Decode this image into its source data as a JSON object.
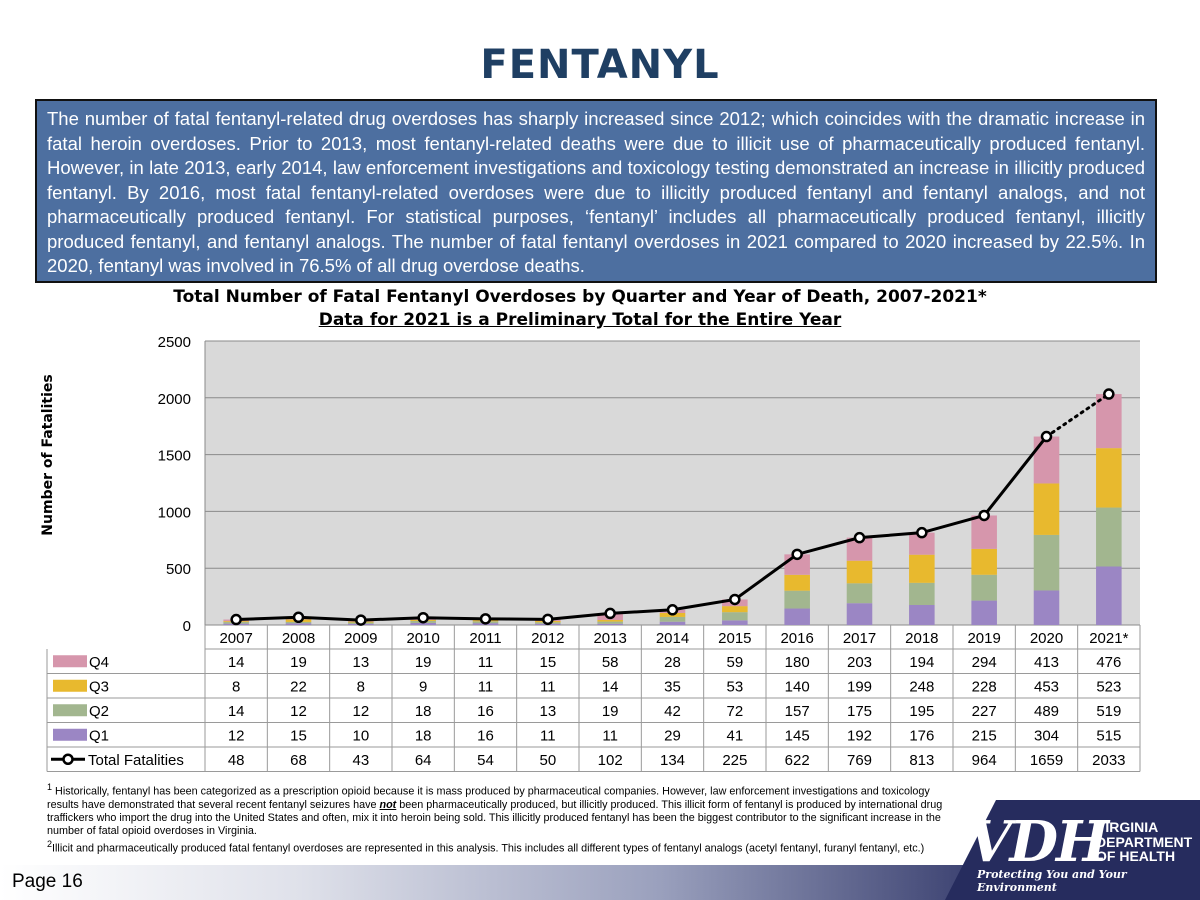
{
  "page": {
    "title": "FENTANYL",
    "intro": "The number of fatal fentanyl-related drug overdoses has sharply increased since 2012; which coincides with the dramatic increase in fatal heroin overdoses. Prior to 2013, most fentanyl-related deaths were due to illicit use of pharmaceutically produced fentanyl. However, in late 2013, early 2014, law enforcement investigations and toxicology testing demonstrated an increase in illicitly produced fentanyl. By 2016, most fatal fentanyl-related overdoses were due to illicitly produced fentanyl and fentanyl analogs, and not pharmaceutically produced fentanyl. For statistical purposes, ‘fentanyl’ includes all pharmaceutically produced fentanyl, illicitly produced fentanyl, and fentanyl analogs. The number of fatal fentanyl overdoses in 2021 compared to 2020 increased by 22.5%. In 2020, fentanyl was involved in 76.5% of all drug overdose deaths.",
    "footnote1_a": "Historically, fentanyl has been categorized as a prescription opioid because it is mass produced by pharmaceutical companies. However, law enforcement investigations and toxicology results have demonstrated that several recent fentanyl seizures have ",
    "footnote1_emph": "not",
    "footnote1_b": " been pharmaceutically produced, but illicitly produced. This illicit form of fentanyl is produced by international drug traffickers who import the drug into the United States and often, mix it into heroin being sold. This illicitly produced fentanyl has been the biggest contributor to the significant increase in the number of fatal opioid overdoses in Virginia.",
    "footnote2": "Illicit and pharmaceutically produced fatal fentanyl overdoses are represented in this analysis. This includes all different types of fentanyl analogs  (acetyl fentanyl, furanyl fentanyl, etc.)",
    "footnote1_mark": "1",
    "footnote2_mark": "2",
    "page_number": "Page 16",
    "logo": {
      "letters": "VDH",
      "line1": "VIRGINIA",
      "line2": "DEPARTMENT",
      "line3": "OF HEALTH",
      "tagline": "Protecting You and Your Environment"
    }
  },
  "chart_data": {
    "type": "bar",
    "stacked": true,
    "title": "Total Number of Fatal Fentanyl Overdoses by Quarter and Year of Death, 2007-2021*",
    "subtitle": "Data for 2021 is a Preliminary Total for the Entire Year",
    "ylabel": "Number of Fatalities",
    "xlabel": "",
    "ylim": [
      0,
      2500
    ],
    "yticks": [
      0,
      500,
      1000,
      1500,
      2000,
      2500
    ],
    "grid": true,
    "legend": "data-table-left",
    "categories": [
      "2007",
      "2008",
      "2009",
      "2010",
      "2011",
      "2012",
      "2013",
      "2014",
      "2015",
      "2016",
      "2017",
      "2018",
      "2019",
      "2020",
      "2021*"
    ],
    "series": [
      {
        "name": "Q1",
        "color": "#9b86c4",
        "values": [
          12,
          15,
          10,
          18,
          16,
          11,
          11,
          29,
          41,
          145,
          192,
          176,
          215,
          304,
          515
        ]
      },
      {
        "name": "Q2",
        "color": "#a2b68f",
        "values": [
          14,
          12,
          12,
          18,
          16,
          13,
          19,
          42,
          72,
          157,
          175,
          195,
          227,
          489,
          519
        ]
      },
      {
        "name": "Q3",
        "color": "#e8b92e",
        "values": [
          8,
          22,
          8,
          9,
          11,
          11,
          14,
          35,
          53,
          140,
          199,
          248,
          228,
          453,
          523
        ]
      },
      {
        "name": "Q4",
        "color": "#d696ac",
        "values": [
          14,
          19,
          13,
          19,
          11,
          15,
          58,
          28,
          59,
          180,
          203,
          194,
          294,
          413,
          476
        ]
      }
    ],
    "line": {
      "name": "Total Fatalities",
      "color": "#000000",
      "values": [
        48,
        68,
        43,
        64,
        54,
        50,
        102,
        134,
        225,
        622,
        769,
        813,
        964,
        1659,
        2033
      ],
      "last_segment_dotted": true
    },
    "table_row_order": [
      "Q4",
      "Q3",
      "Q2",
      "Q1",
      "Total Fatalities"
    ]
  }
}
